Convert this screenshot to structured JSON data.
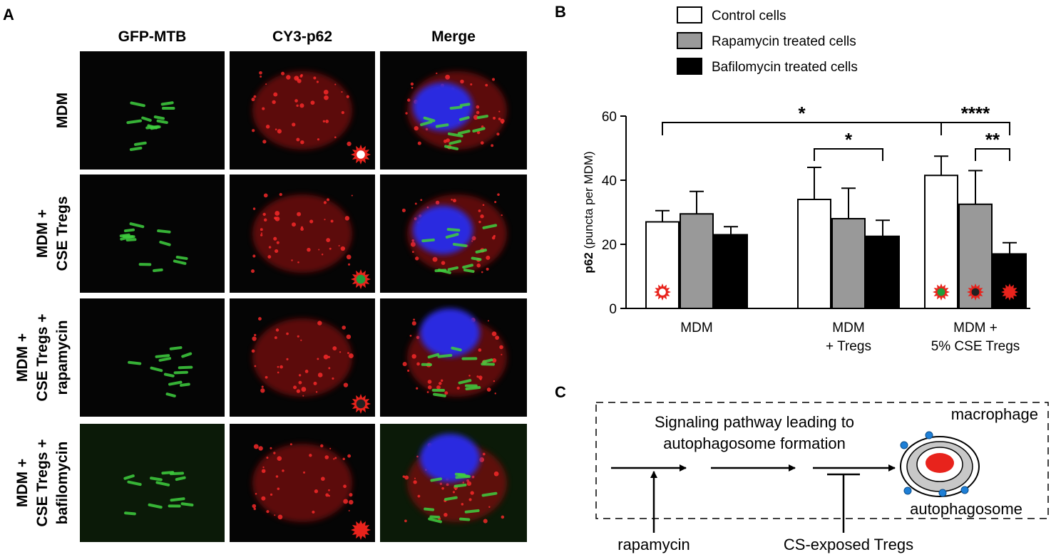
{
  "panel_a": {
    "label": "A",
    "columns": [
      "GFP-MTB",
      "CY3-p62",
      "Merge"
    ],
    "rows": [
      [
        "MDM"
      ],
      [
        "MDM +",
        "CSE Tregs"
      ],
      [
        "MDM +",
        "CSE Tregs +",
        "rapamycin"
      ],
      [
        "MDM +",
        "CSE Tregs +",
        "bafilomycin"
      ]
    ]
  },
  "chart_data": {
    "type": "bar",
    "label": "B",
    "y_label": {
      "bold": "p62",
      "rest": "(puncta per MDM)"
    },
    "categories": [
      "MDM",
      "MDM\n+ Tregs",
      "MDM +\n5% CSE Tregs"
    ],
    "series": [
      {
        "name": "Control cells",
        "color": "#ffffff",
        "values": [
          27,
          34,
          41.5
        ],
        "errors": [
          3.5,
          10,
          6
        ]
      },
      {
        "name": "Rapamycin treated cells",
        "color": "#999999",
        "values": [
          29.5,
          28,
          32.5
        ],
        "errors": [
          7,
          9.5,
          10.5
        ]
      },
      {
        "name": "Bafilomycin treated cells",
        "color": "#000000",
        "values": [
          23,
          22.5,
          17
        ],
        "errors": [
          2.5,
          5,
          3.5
        ]
      }
    ],
    "ylim": [
      0,
      60
    ],
    "yticks": [
      0,
      20,
      40,
      60
    ],
    "significance": [
      "*",
      "*",
      "****",
      "**"
    ]
  },
  "panel_c": {
    "label": "C",
    "box_label": "macrophage",
    "pathway": [
      "Signaling pathway leading to",
      "autophagosome formation"
    ],
    "product": "autophagosome",
    "activator": "rapamycin",
    "inhibitor": "CS-exposed Tregs"
  }
}
